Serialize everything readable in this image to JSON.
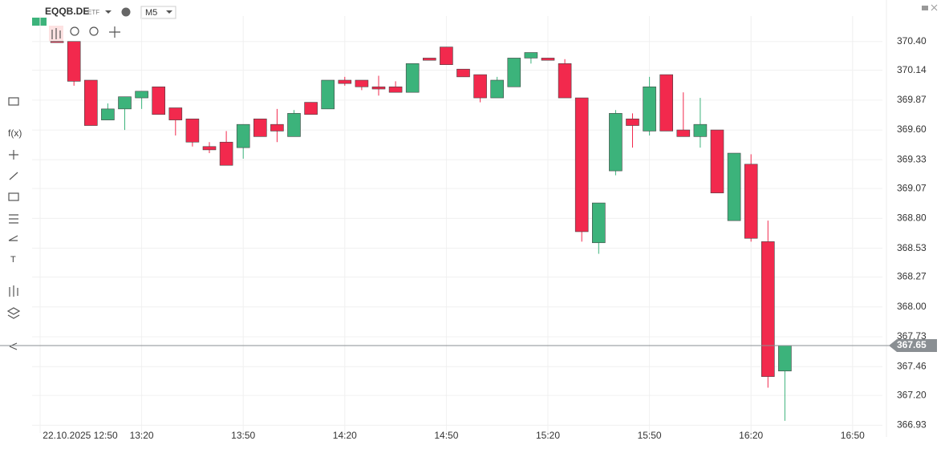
{
  "chart_data": {
    "type": "candlestick",
    "symbol": "EQQB.DE",
    "symbol_tag": "ETF",
    "timeframe": "M5",
    "x": [
      "12:55",
      "13:00",
      "13:05",
      "13:10",
      "13:15",
      "13:20",
      "13:25",
      "13:30",
      "13:35",
      "13:40",
      "13:45",
      "13:50",
      "13:55",
      "14:00",
      "14:05",
      "14:10",
      "14:15",
      "14:20",
      "14:25",
      "14:30",
      "14:35",
      "14:40",
      "14:45",
      "14:50",
      "14:55",
      "15:00",
      "15:05",
      "15:10",
      "15:15",
      "15:20",
      "15:25",
      "15:30",
      "15:35",
      "15:40",
      "15:45",
      "15:50",
      "15:55",
      "16:00",
      "16:05",
      "16:10",
      "16:15",
      "16:20",
      "16:25",
      "16:30"
    ],
    "open": [
      370.4,
      370.4,
      370.05,
      369.69,
      369.79,
      369.89,
      369.99,
      369.8,
      369.7,
      369.45,
      369.49,
      369.44,
      369.7,
      369.65,
      369.54,
      369.85,
      369.79,
      370.05,
      370.05,
      369.99,
      369.99,
      369.94,
      370.25,
      370.35,
      370.15,
      370.1,
      369.89,
      369.99,
      370.25,
      370.25,
      370.2,
      369.89,
      368.58,
      369.23,
      369.7,
      369.59,
      370.1,
      369.6,
      369.54,
      369.6,
      368.78,
      369.29,
      368.59,
      367.42
    ],
    "high": [
      370.4,
      370.4,
      370.05,
      369.84,
      369.9,
      369.95,
      369.99,
      369.8,
      369.7,
      369.49,
      369.59,
      369.65,
      369.7,
      369.79,
      369.78,
      369.85,
      370.05,
      370.08,
      370.05,
      370.09,
      370.04,
      370.2,
      370.25,
      370.35,
      370.15,
      370.1,
      370.08,
      370.25,
      370.3,
      370.25,
      370.24,
      369.89,
      368.94,
      369.78,
      369.75,
      370.08,
      370.1,
      369.94,
      369.89,
      369.6,
      369.39,
      369.38,
      368.78,
      367.65
    ],
    "low": [
      370.39,
      370.0,
      369.64,
      369.69,
      369.6,
      369.79,
      369.74,
      369.55,
      369.45,
      369.39,
      369.28,
      369.34,
      369.54,
      369.49,
      369.54,
      369.74,
      369.79,
      370.0,
      369.96,
      369.91,
      369.94,
      369.94,
      370.23,
      370.19,
      370.08,
      369.85,
      369.89,
      369.99,
      370.2,
      370.23,
      369.89,
      368.59,
      368.48,
      369.19,
      369.44,
      369.55,
      369.59,
      369.54,
      369.44,
      369.03,
      368.78,
      368.59,
      367.27,
      366.97
    ],
    "close": [
      370.39,
      370.04,
      369.64,
      369.79,
      369.9,
      369.95,
      369.74,
      369.69,
      369.49,
      369.42,
      369.28,
      369.65,
      369.54,
      369.59,
      369.75,
      369.74,
      370.05,
      370.02,
      369.99,
      369.97,
      369.94,
      370.2,
      370.23,
      370.19,
      370.08,
      369.89,
      370.05,
      370.25,
      370.3,
      370.23,
      369.89,
      368.68,
      368.94,
      369.75,
      369.64,
      369.99,
      369.59,
      369.54,
      369.65,
      369.03,
      369.39,
      368.62,
      367.37,
      367.65
    ],
    "up_color": "#3cb37b",
    "down_color": "#f2294d",
    "grid": true,
    "ylim": [
      366.86,
      370.63
    ],
    "yticks": [
      {
        "value": 370.4,
        "label": "370.40"
      },
      370.14,
      369.87,
      {
        "value": 369.6,
        "label": "369.60"
      },
      369.33,
      369.07,
      {
        "value": 368.8,
        "label": "368.80"
      },
      368.53,
      368.27,
      {
        "value": 368,
        "label": "368.00"
      },
      367.73,
      367.46,
      {
        "value": 367.2,
        "label": "367.20"
      },
      366.93
    ],
    "xticks": [
      {
        "value": "12:50",
        "label": "22.10.2025 12:50"
      },
      "13:20",
      "13:50",
      "14:20",
      "14:50",
      "15:20",
      "15:50",
      "16:20",
      "16:50"
    ],
    "last_price": 367.65
  },
  "tools": {
    "fx": "f(x)",
    "text": "T"
  }
}
